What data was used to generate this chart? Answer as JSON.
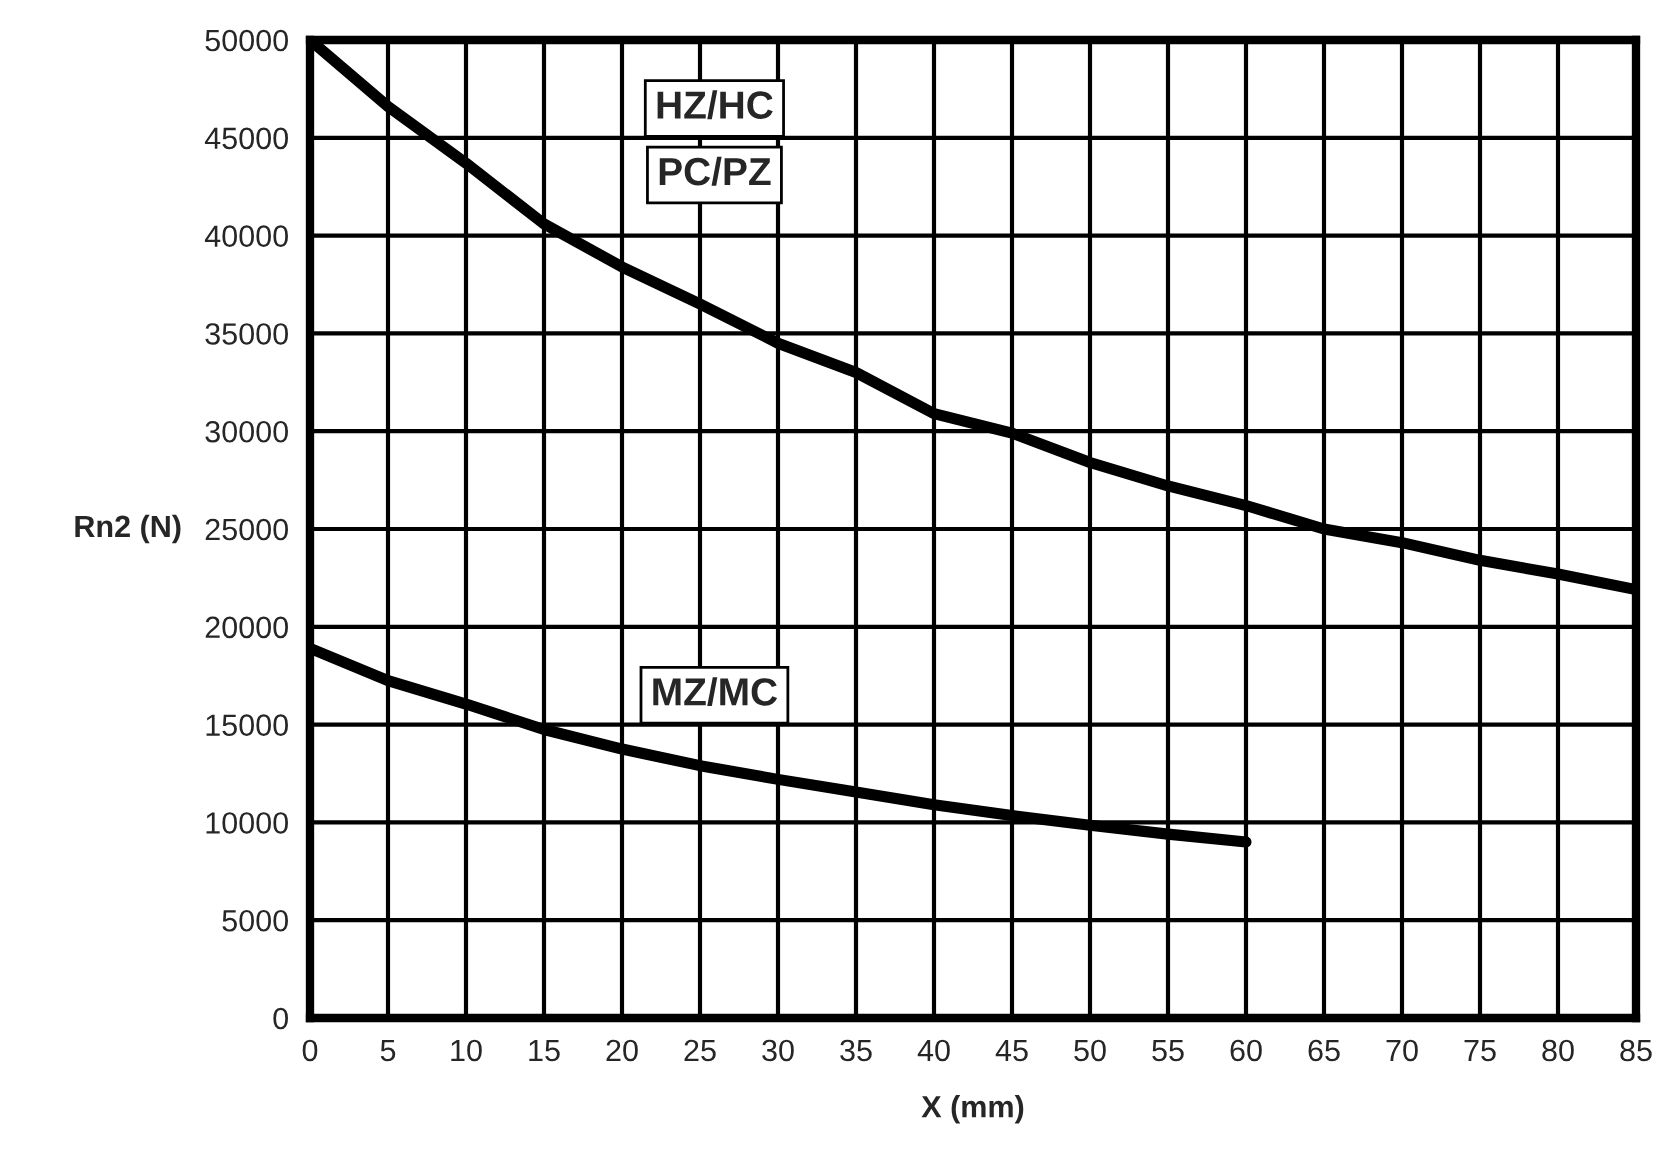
{
  "chart_data": {
    "type": "line",
    "xlabel": "X (mm)",
    "ylabel": "Rn2 (N)",
    "series": [
      {
        "name": "HZ/HC",
        "color": "#000000",
        "x": [
          0,
          5,
          10,
          15,
          20,
          25,
          30,
          35,
          40,
          45,
          50,
          55,
          60,
          65,
          70,
          75,
          80,
          85
        ],
        "values": [
          50000,
          46600,
          43700,
          40600,
          38400,
          36500,
          34500,
          33000,
          30900,
          29900,
          28400,
          27200,
          26200,
          25000,
          24300,
          23400,
          22700,
          21900
        ]
      },
      {
        "name": "MZ/MC",
        "color": "#000000",
        "x": [
          0,
          5,
          10,
          15,
          20,
          25,
          30,
          35,
          40,
          45,
          50,
          55,
          60
        ],
        "values": [
          18900,
          17250,
          16050,
          14750,
          13750,
          12900,
          12200,
          11550,
          10900,
          10350,
          9850,
          9400,
          9000
        ]
      }
    ],
    "annotations": [
      "PC/PZ"
    ],
    "xlim": [
      0,
      85
    ],
    "xticks": [
      0,
      5,
      10,
      15,
      20,
      25,
      30,
      35,
      40,
      45,
      50,
      55,
      60,
      65,
      70,
      75,
      80,
      85
    ],
    "ylim": [
      0,
      50000
    ],
    "yticks": [
      0,
      5000,
      10000,
      15000,
      20000,
      25000,
      30000,
      35000,
      40000,
      45000,
      50000
    ],
    "grid": true,
    "line_style": "solid",
    "marker": "none"
  }
}
